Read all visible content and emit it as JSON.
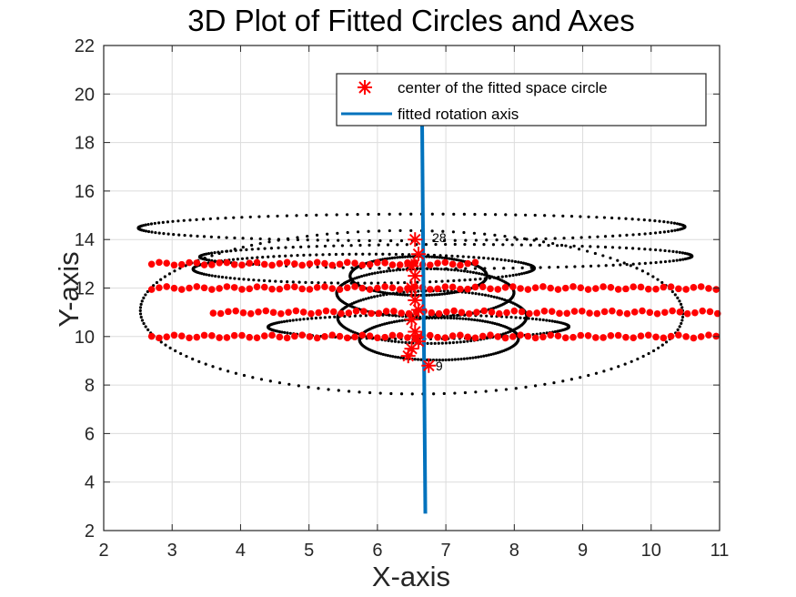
{
  "chart_data": {
    "type": "scatter",
    "title": "3D Plot of Fitted Circles and Axes",
    "xlabel": "X-axis",
    "ylabel": "Y-axis",
    "xlim": [
      2,
      11
    ],
    "ylim": [
      2,
      22
    ],
    "xticks": [
      "2",
      "3",
      "4",
      "5",
      "6",
      "7",
      "8",
      "9",
      "10",
      "11"
    ],
    "yticks": [
      "2",
      "4",
      "6",
      "8",
      "10",
      "12",
      "14",
      "16",
      "18",
      "20",
      "22"
    ],
    "grid": true,
    "legend_position": "top-right",
    "series": [
      {
        "name": "center of the fitted space circle",
        "marker": "asterisk",
        "color": "#ff0000",
        "points": [
          [
            6.55,
            14.0
          ],
          [
            6.6,
            13.4
          ],
          [
            6.5,
            12.9
          ],
          [
            6.55,
            12.5
          ],
          [
            6.5,
            12.0
          ],
          [
            6.55,
            11.5
          ],
          [
            6.6,
            11.1
          ],
          [
            6.5,
            10.7
          ],
          [
            6.55,
            10.2
          ],
          [
            6.6,
            9.8
          ],
          [
            6.5,
            9.5
          ],
          [
            6.45,
            9.2
          ],
          [
            6.75,
            8.8
          ]
        ]
      },
      {
        "name": "fitted rotation axis",
        "type": "line",
        "color": "#0072bd",
        "points": [
          [
            6.65,
            19.8
          ],
          [
            6.7,
            2.7
          ]
        ]
      },
      {
        "name": "",
        "type": "ellipse-dots",
        "color": "#000000",
        "ellipses": [
          {
            "cx": 6.5,
            "cy": 14.5,
            "rx": 4.0,
            "ry": 0.55,
            "tilt": 3
          },
          {
            "cx": 6.5,
            "cy": 11.0,
            "rx": 4.0,
            "ry": 3.4,
            "tilt": 8
          },
          {
            "cx": 6.6,
            "cy": 12.5,
            "rx": 1.0,
            "ry": 0.8,
            "tilt": 0
          },
          {
            "cx": 6.7,
            "cy": 11.8,
            "rx": 1.3,
            "ry": 1.0,
            "tilt": -5
          },
          {
            "cx": 6.8,
            "cy": 10.8,
            "rx": 1.4,
            "ry": 1.1,
            "tilt": -10
          },
          {
            "cx": 6.9,
            "cy": 9.9,
            "rx": 1.2,
            "ry": 0.9,
            "tilt": -15
          },
          {
            "cx": 7.0,
            "cy": 13.3,
            "rx": 3.6,
            "ry": 0.5,
            "tilt": 2
          },
          {
            "cx": 6.6,
            "cy": 10.4,
            "rx": 2.2,
            "ry": 0.5,
            "tilt": 2
          },
          {
            "cx": 5.8,
            "cy": 12.8,
            "rx": 2.5,
            "ry": 0.6,
            "tilt": 4
          }
        ]
      },
      {
        "name": "",
        "type": "band-dots",
        "color": "#ff0000",
        "bands": [
          {
            "y": 13.0,
            "x_from": 2.7,
            "x_to": 7.5
          },
          {
            "y": 12.0,
            "x_from": 2.7,
            "x_to": 11.0
          },
          {
            "y": 11.0,
            "x_from": 3.6,
            "x_to": 11.0
          },
          {
            "y": 10.0,
            "x_from": 2.7,
            "x_to": 11.0
          }
        ]
      }
    ],
    "annotations": [
      "28",
      "9"
    ]
  }
}
